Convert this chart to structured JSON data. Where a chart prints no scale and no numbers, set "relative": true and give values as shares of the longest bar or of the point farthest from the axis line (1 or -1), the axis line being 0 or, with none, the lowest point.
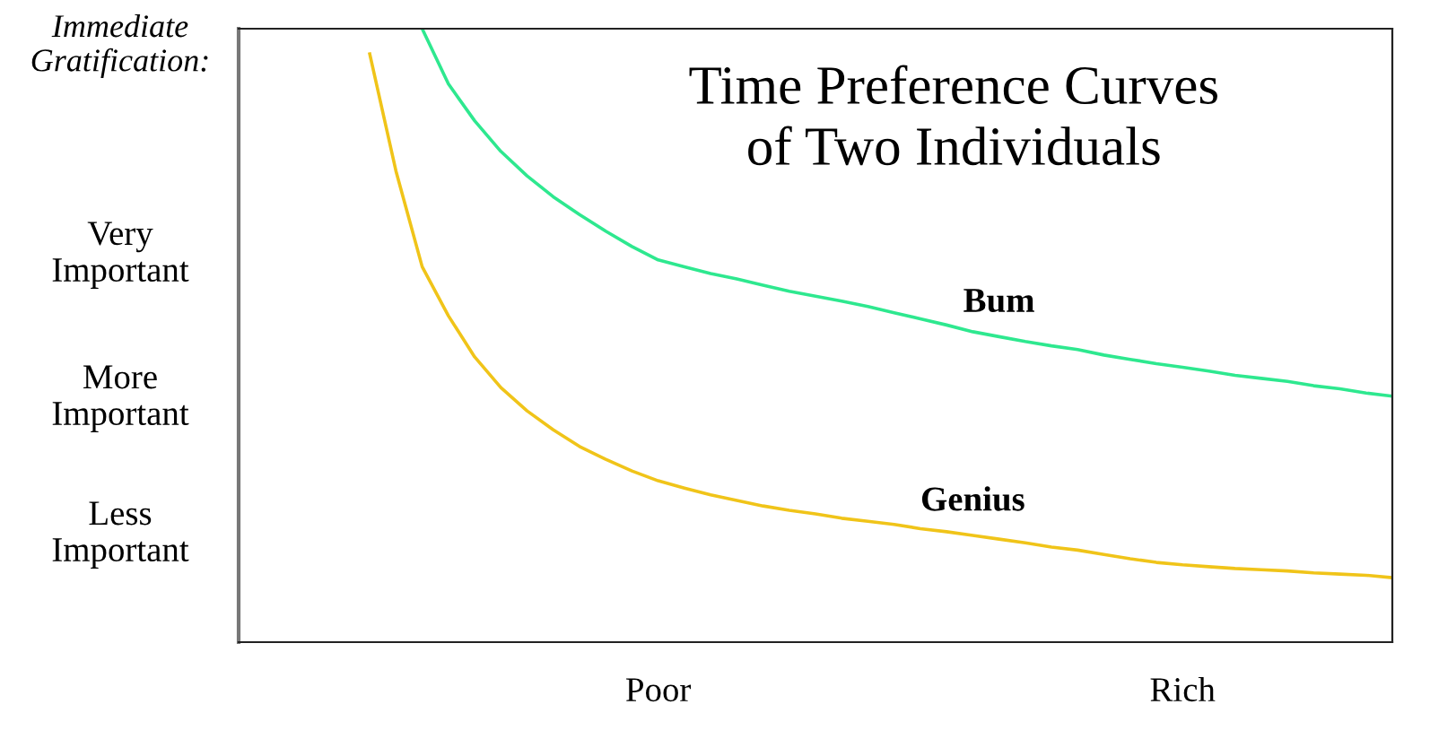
{
  "chart_data": {
    "type": "line",
    "title": "Time Preference Curves\nof Two Individuals",
    "ylabel": "Immediate\nGratification:",
    "annotations": [
      "Very\nImportant",
      "More\nImportant",
      "Less\nImportant"
    ],
    "relative": true,
    "categories": [
      null,
      null,
      null,
      null,
      null,
      null,
      null,
      null,
      null,
      null,
      null,
      null,
      null,
      null,
      null,
      null,
      "Poor",
      null,
      null,
      null,
      null,
      null,
      null,
      null,
      null,
      null,
      null,
      null,
      null,
      null,
      null,
      null,
      null,
      null,
      null,
      null,
      "Rich",
      null,
      null,
      null,
      null,
      null,
      null,
      null,
      null
    ],
    "grid": false,
    "legend": false,
    "marker": "none",
    "line_style": "solid",
    "series": [
      {
        "name": "Bum",
        "color": "#2ee88f",
        "values": [
          null,
          null,
          null,
          null,
          null,
          null,
          null,
          1.0,
          0.91,
          0.85,
          0.8,
          0.76,
          0.726,
          0.697,
          0.67,
          0.645,
          0.623,
          0.612,
          0.601,
          0.592,
          0.582,
          0.572,
          0.564,
          0.556,
          0.547,
          0.537,
          0.527,
          0.517,
          0.506,
          0.498,
          0.49,
          0.483,
          0.477,
          0.468,
          0.461,
          0.454,
          0.448,
          0.442,
          0.435,
          0.43,
          0.425,
          0.418,
          0.413,
          0.406,
          0.401
        ]
      },
      {
        "name": "Genius",
        "color": "#f0c419",
        "values": [
          null,
          null,
          null,
          null,
          null,
          0.959,
          0.768,
          0.612,
          0.532,
          0.465,
          0.415,
          0.377,
          0.346,
          0.319,
          0.298,
          0.279,
          0.263,
          0.251,
          0.24,
          0.231,
          0.222,
          0.215,
          0.209,
          0.202,
          0.197,
          0.192,
          0.185,
          0.18,
          0.174,
          0.168,
          0.162,
          0.155,
          0.15,
          0.143,
          0.136,
          0.13,
          0.126,
          0.123,
          0.12,
          0.118,
          0.116,
          0.113,
          0.111,
          0.109,
          0.105
        ]
      }
    ]
  }
}
